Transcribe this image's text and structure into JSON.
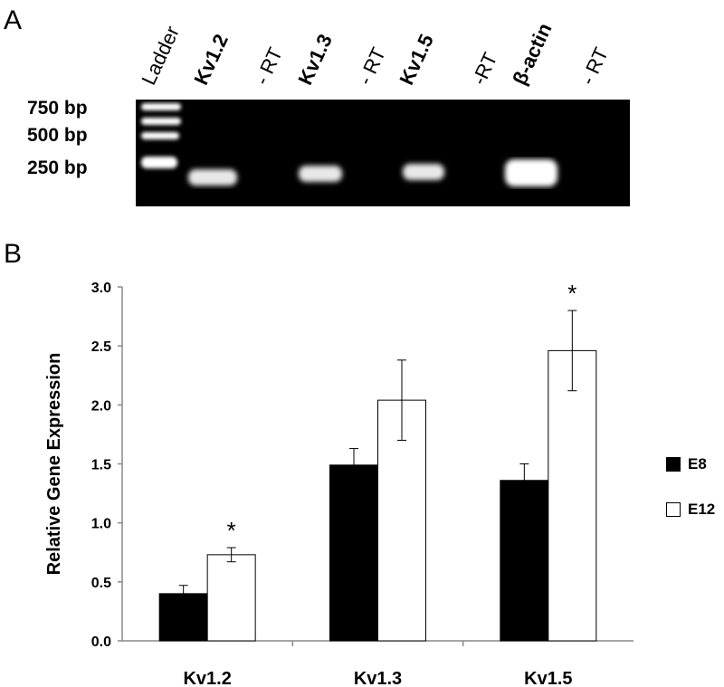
{
  "panel_a": {
    "letter": "A",
    "lanes": [
      {
        "label": "Ladder",
        "bold": false
      },
      {
        "label": "Kv1.2",
        "bold": true
      },
      {
        "label": "- RT",
        "bold": false
      },
      {
        "label": "Kv1.3",
        "bold": true
      },
      {
        "label": "- RT",
        "bold": false
      },
      {
        "label": "Kv1.5",
        "bold": true
      },
      {
        "label": "-RT",
        "bold": false
      },
      {
        "label": "β-actin",
        "bold": true
      },
      {
        "label": "- RT",
        "bold": false
      }
    ],
    "sizes": [
      "750 bp",
      "500 bp",
      "250 bp"
    ],
    "colors": {
      "gel": "#000000",
      "band": "#ffffff"
    }
  },
  "panel_b": {
    "letter": "B"
  },
  "chart_data": {
    "type": "bar",
    "categories": [
      "Kv1.2",
      "Kv1.3",
      "Kv1.5"
    ],
    "series": [
      {
        "name": "E8",
        "color": "#000000",
        "values": [
          0.4,
          1.49,
          1.36
        ],
        "errors": [
          0.07,
          0.14,
          0.14
        ]
      },
      {
        "name": "E12",
        "color": "#ffffff",
        "values": [
          0.73,
          2.04,
          2.46
        ],
        "errors": [
          0.06,
          0.34,
          0.34
        ]
      }
    ],
    "significance": [
      "*",
      "",
      "*"
    ],
    "significance_series": "E12",
    "xlabel": "",
    "ylabel": "Relative Gene Expression",
    "ylim": [
      0,
      3.0
    ],
    "yticks": [
      "0.0",
      "0.5",
      "1.0",
      "1.5",
      "2.0",
      "2.5",
      "3.0"
    ],
    "grid": false,
    "legend_position": "right"
  }
}
